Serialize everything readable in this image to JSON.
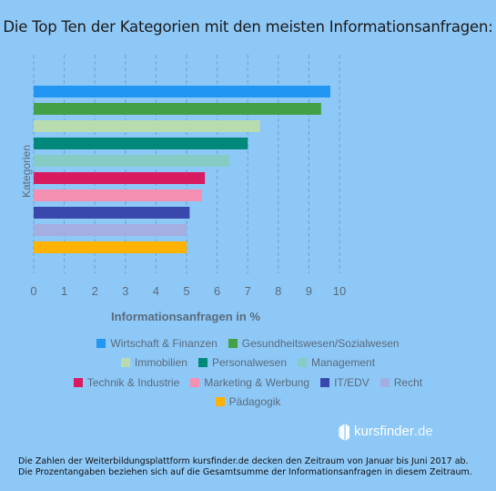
{
  "title": "Die Top Ten der Kategorien mit den meisten Informationsanfragen:",
  "chart_data": {
    "type": "bar",
    "orientation": "horizontal",
    "ylabel": "Kategorien",
    "xlabel": "Informationsanfragen in %",
    "xlim": [
      0,
      10
    ],
    "xticks": [
      "0",
      "1",
      "2",
      "3",
      "4",
      "5",
      "6",
      "7",
      "8",
      "9",
      "10"
    ],
    "grid": true,
    "legend_position": "bottom",
    "series": [
      {
        "name": "Wirtschaft & Finanzen",
        "value": 9.7,
        "color": "#2196f3"
      },
      {
        "name": "Gesundheitswesen/Sozialwesen",
        "value": 9.4,
        "color": "#43a047"
      },
      {
        "name": "Immobilien",
        "value": 7.4,
        "color": "#b8dcb0"
      },
      {
        "name": "Personalwesen",
        "value": 7.0,
        "color": "#00897b"
      },
      {
        "name": "Management",
        "value": 6.4,
        "color": "#86ccc4"
      },
      {
        "name": "Technik & Industrie",
        "value": 5.6,
        "color": "#d81b60"
      },
      {
        "name": "Marketing & Werbung",
        "value": 5.5,
        "color": "#f48fb1"
      },
      {
        "name": "IT/EDV",
        "value": 5.1,
        "color": "#3949ab"
      },
      {
        "name": "Recht",
        "value": 5.0,
        "color": "#a5aee0"
      },
      {
        "name": "Pädagogik",
        "value": 5.0,
        "color": "#ffb300"
      }
    ]
  },
  "legend_rows": [
    [
      0,
      1
    ],
    [
      2,
      3,
      4
    ],
    [
      5,
      6,
      7,
      8
    ],
    [
      9
    ]
  ],
  "logo": {
    "text": "kursfinder",
    "suffix": ".de"
  },
  "footnote": "Die Zahlen der Weiterbildungsplattform kursfinder.de decken den Zeitraum von Januar bis Juni 2017 ab. Die Prozentangaben beziehen sich auf die Gesamtsumme der  Informationsanfragen in diesem Zeitraum."
}
